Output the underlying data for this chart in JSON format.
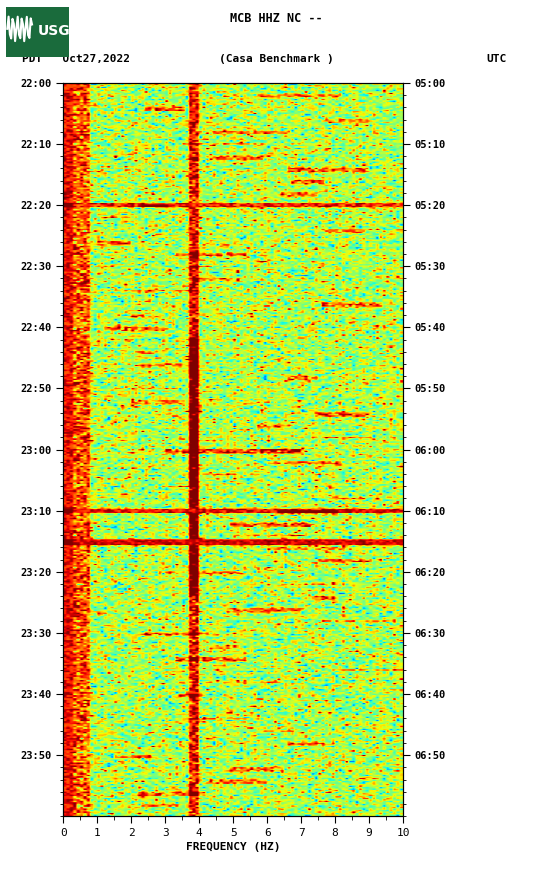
{
  "title_line1": "MCB HHZ NC --",
  "title_line2": "(Casa Benchmark )",
  "left_label": "PDT   Oct27,2022",
  "right_label": "UTC",
  "xlabel": "FREQUENCY (HZ)",
  "freq_min": 0,
  "freq_max": 10,
  "left_ticks": [
    "22:00",
    "22:10",
    "22:20",
    "22:30",
    "22:40",
    "22:50",
    "23:00",
    "23:10",
    "23:20",
    "23:30",
    "23:40",
    "23:50"
  ],
  "right_ticks": [
    "05:00",
    "05:10",
    "05:20",
    "05:30",
    "05:40",
    "05:50",
    "06:00",
    "06:10",
    "06:20",
    "06:30",
    "06:40",
    "06:50"
  ],
  "fig_width": 5.52,
  "fig_height": 8.92,
  "bg_color": "#ffffff",
  "colormap": "jet",
  "noise_seed": 42,
  "usgs_logo_color": "#1a6b3c",
  "black_panel_color": "#000000",
  "vmin": 0.0,
  "vmax": 1.0,
  "base_level": 0.55,
  "n_time": 480,
  "n_freq": 100
}
